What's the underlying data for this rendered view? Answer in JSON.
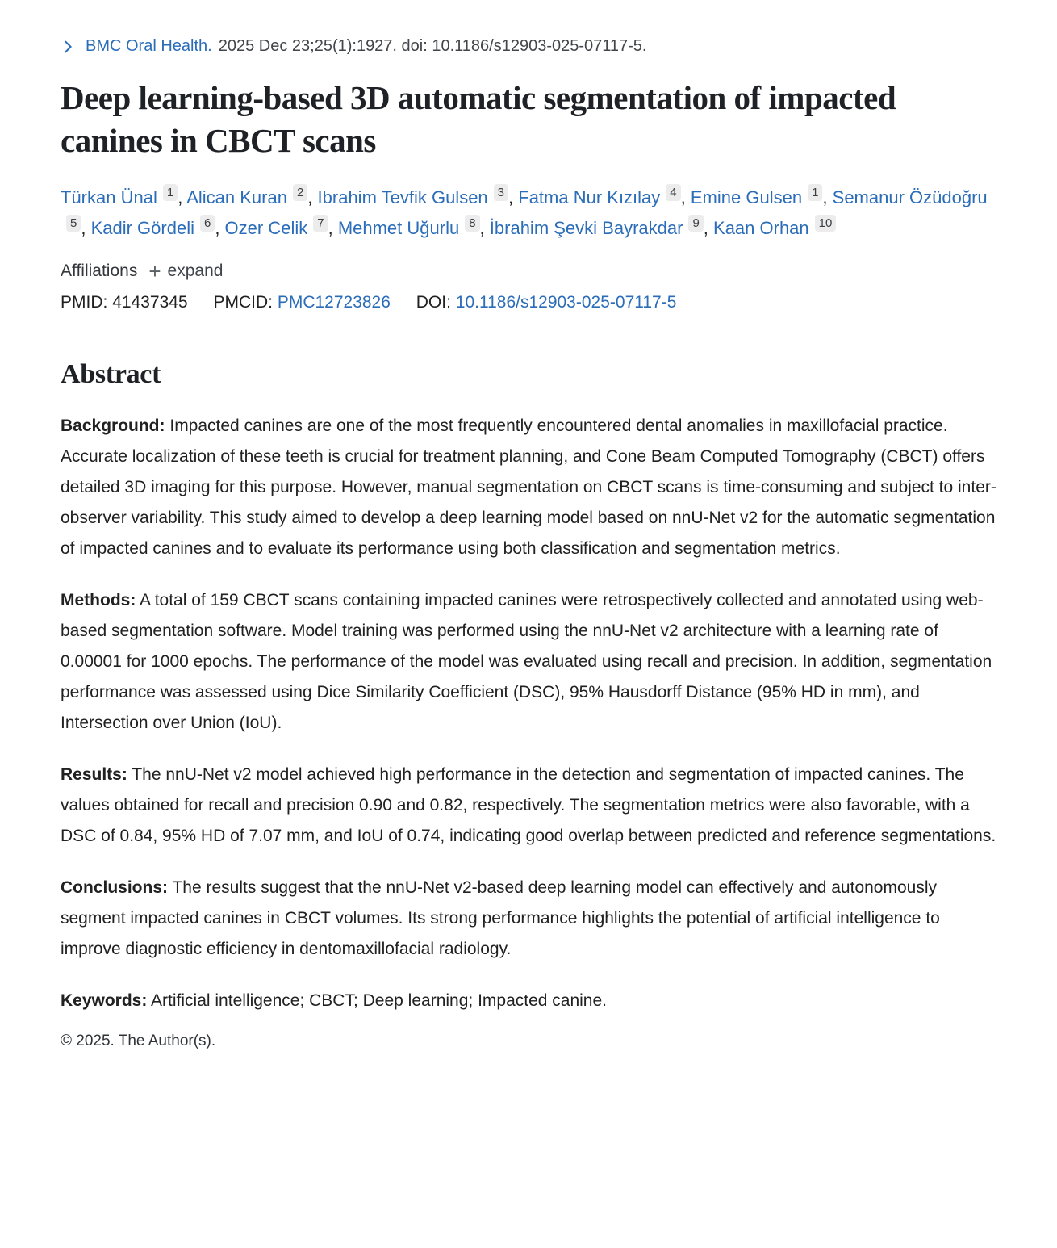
{
  "colors": {
    "link_blue": "#2b6db8",
    "text_primary": "#212121",
    "text_secondary": "#424549",
    "badge_background": "#ececec"
  },
  "citation": {
    "chevron_icon": "chevron-right-icon",
    "journal_link": "BMC Oral Health.",
    "rest": "2025 Dec 23;25(1):1927. doi: 10.1186/s12903-025-07117-5."
  },
  "title": "Deep learning-based 3D automatic segmentation of impacted canines in CBCT scans",
  "author_separator": ", ",
  "authors": [
    {
      "name": "Türkan Ünal",
      "sup": "1"
    },
    {
      "name": "Alican Kuran",
      "sup": "2"
    },
    {
      "name": "Ibrahim Tevfik Gulsen",
      "sup": "3"
    },
    {
      "name": "Fatma Nur Kızılay",
      "sup": "4"
    },
    {
      "name": "Emine Gulsen",
      "sup": "1"
    },
    {
      "name": "Semanur Özüdoğru",
      "sup": "5"
    },
    {
      "name": "Kadir Gördeli",
      "sup": "6"
    },
    {
      "name": "Ozer Celik",
      "sup": "7"
    },
    {
      "name": "Mehmet Uğurlu",
      "sup": "8"
    },
    {
      "name": "İbrahim Şevki Bayrakdar",
      "sup": "9"
    },
    {
      "name": "Kaan Orhan",
      "sup": "10"
    }
  ],
  "affiliations": {
    "label": "Affiliations",
    "plus_icon": "plus-icon",
    "expand_label": "expand"
  },
  "identifiers": {
    "pmid_label": "PMID:",
    "pmid_value": "41437345",
    "pmcid_label": "PMCID:",
    "pmcid_value": "PMC12723826",
    "doi_label": "DOI:",
    "doi_value": "10.1186/s12903-025-07117-5"
  },
  "abstract": {
    "heading": "Abstract",
    "sections": [
      {
        "label": "Background:",
        "text": "Impacted canines are one of the most frequently encountered dental anomalies in maxillofacial practice. Accurate localization of these teeth is crucial for treatment planning, and Cone Beam Computed Tomography (CBCT) offers detailed 3D imaging for this purpose. However, manual segmentation on CBCT scans is time-consuming and subject to inter-observer variability. This study aimed to develop a deep learning model based on nnU-Net v2 for the automatic segmentation of impacted canines and to evaluate its performance using both classification and segmentation metrics."
      },
      {
        "label": "Methods:",
        "text": "A total of 159 CBCT scans containing impacted canines were retrospectively collected and annotated using web-based segmentation software. Model training was performed using the nnU-Net v2 architecture with a learning rate of 0.00001 for 1000 epochs. The performance of the model was evaluated using recall and precision. In addition, segmentation performance was assessed using Dice Similarity Coefficient (DSC), 95% Hausdorff Distance (95% HD in mm), and Intersection over Union (IoU)."
      },
      {
        "label": "Results:",
        "text": "The nnU-Net v2 model achieved high performance in the detection and segmentation of impacted canines. The values obtained for recall and precision 0.90 and 0.82, respectively. The segmentation metrics were also favorable, with a DSC of 0.84, 95% HD of 7.07 mm, and IoU of 0.74, indicating good overlap between predicted and reference segmentations."
      },
      {
        "label": "Conclusions:",
        "text": "The results suggest that the nnU-Net v2-based deep learning model can effectively and autonomously segment impacted canines in CBCT volumes. Its strong performance highlights the potential of artificial intelligence to improve diagnostic efficiency in dentomaxillofacial radiology."
      }
    ],
    "keywords_label": "Keywords:",
    "keywords_text": "Artificial intelligence; CBCT; Deep learning; Impacted canine."
  },
  "copyright": "© 2025. The Author(s)."
}
